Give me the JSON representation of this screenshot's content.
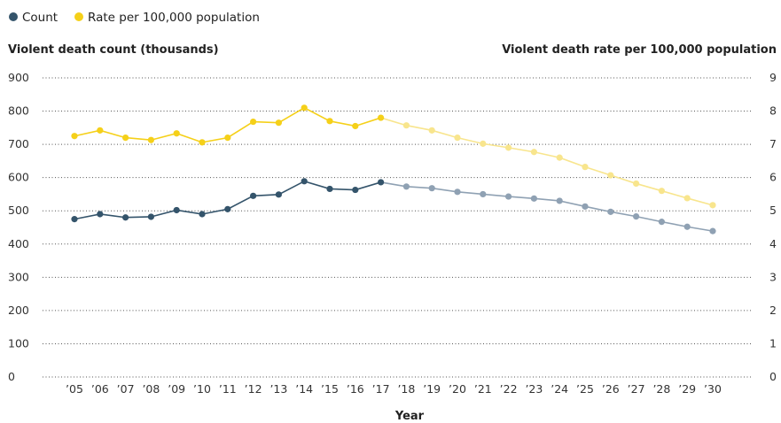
{
  "chart_data": {
    "type": "line",
    "legend": {
      "placement": "top-left"
    },
    "xlabel": "Year",
    "ylabel_left": "Violent death count (thousands)",
    "ylabel_right": "Violent death rate per 100,000 population",
    "ylim_left": [
      0,
      900
    ],
    "ylim_right": [
      0,
      9
    ],
    "yticks_left": [
      "0",
      "100",
      "200",
      "300",
      "400",
      "500",
      "600",
      "700",
      "800",
      "900"
    ],
    "yticks_right": [
      "0",
      "1",
      "2",
      "3",
      "4",
      "5",
      "6",
      "7",
      "8",
      "9"
    ],
    "grid": "dotted horizontal",
    "categories": [
      "’05",
      "’06",
      "’07",
      "’08",
      "’09",
      "’10",
      "’11",
      "’12",
      "’13",
      "’14",
      "’15",
      "’16",
      "’17",
      "’18",
      "’19",
      "’20",
      "’21",
      "’22",
      "’23",
      "’24",
      "’25",
      "’26",
      "’27",
      "’28",
      "’29",
      "’30"
    ],
    "projection_start_index": 12,
    "series": [
      {
        "name": "Count",
        "axis": "left",
        "color": "#34546b",
        "projection_color": "#8fa1b3",
        "values": [
          475,
          490,
          480,
          482,
          502,
          490,
          505,
          545,
          549,
          589,
          566,
          563,
          586,
          573,
          568,
          557,
          550,
          543,
          537,
          530,
          513,
          497,
          483,
          467,
          452,
          439
        ]
      },
      {
        "name": "Rate per 100,000 population",
        "axis": "right",
        "color": "#f5d019",
        "projection_color": "#f8e58d",
        "values": [
          7.25,
          7.42,
          7.2,
          7.13,
          7.33,
          7.06,
          7.2,
          7.68,
          7.65,
          8.1,
          7.7,
          7.55,
          7.8,
          7.57,
          7.42,
          7.2,
          7.02,
          6.9,
          6.77,
          6.6,
          6.32,
          6.07,
          5.82,
          5.6,
          5.38,
          5.17
        ]
      }
    ]
  }
}
